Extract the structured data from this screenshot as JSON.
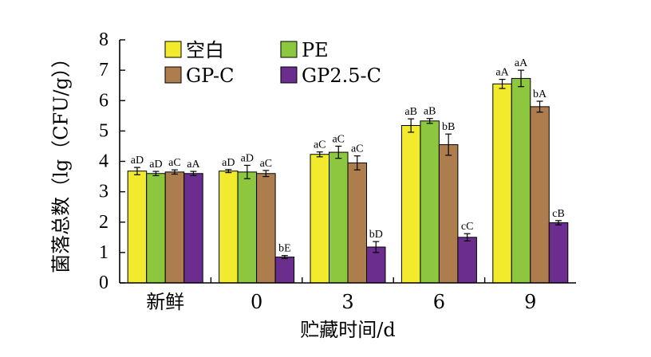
{
  "chart_data": {
    "type": "bar",
    "categories": [
      "新鲜",
      "0",
      "3",
      "6",
      "9"
    ],
    "xlabel": "贮藏时间/d",
    "ylabel": "菌落总数（lg（CFU/g））",
    "ylim": [
      0,
      8
    ],
    "yticks": [
      0,
      1,
      2,
      3,
      4,
      5,
      6,
      7,
      8
    ],
    "grid": false,
    "legend_position": "top-left",
    "series": [
      {
        "name": "空白",
        "color": "#f2ea2c",
        "values": [
          3.68,
          3.68,
          4.23,
          5.18,
          6.55
        ],
        "errors": [
          0.12,
          0.05,
          0.08,
          0.22,
          0.15
        ],
        "labels": [
          "aD",
          "aD",
          "aC",
          "aB",
          "aA"
        ]
      },
      {
        "name": "PE",
        "color": "#8dc63f",
        "values": [
          3.6,
          3.65,
          4.3,
          5.33,
          6.73
        ],
        "errors": [
          0.07,
          0.22,
          0.2,
          0.08,
          0.27
        ],
        "labels": [
          "aD",
          "aD",
          "aC",
          "aB",
          "aA"
        ]
      },
      {
        "name": "GP-C",
        "color": "#ad7d4d",
        "values": [
          3.65,
          3.6,
          3.95,
          4.55,
          5.8
        ],
        "errors": [
          0.07,
          0.1,
          0.23,
          0.35,
          0.18
        ],
        "labels": [
          "aC",
          "aC",
          "aC",
          "bB",
          "bA"
        ]
      },
      {
        "name": "GP2.5-C",
        "color": "#6b2d8e",
        "values": [
          3.6,
          0.85,
          1.18,
          1.5,
          1.98
        ],
        "errors": [
          0.07,
          0.05,
          0.18,
          0.12,
          0.07
        ],
        "labels": [
          "aA",
          "bE",
          "bD",
          "cC",
          "cB"
        ]
      }
    ]
  }
}
